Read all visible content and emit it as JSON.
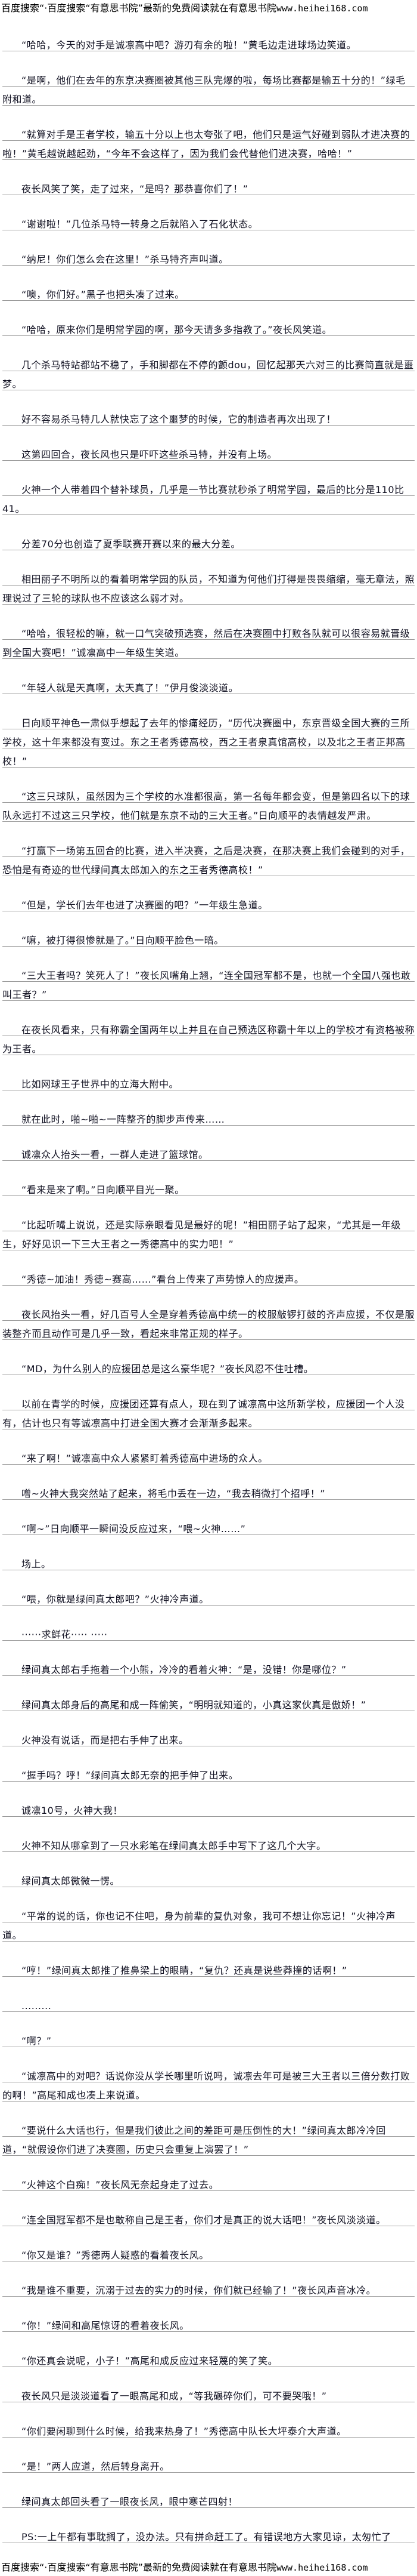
{
  "header": {
    "prefix": "百度搜索“·百度搜索“有意思书院”最新的免费阅读就在有意思书院",
    "url": "www.heihei168.com"
  },
  "paragraphs": [
    "“哈哈，今天的对手是诚凛高中吧？游刃有余的啦！”黄毛边走进球场边笑道。",
    "“是啊，他们在去年的东京决赛圈被其他三队完爆的啦，每场比赛都是输五十分的！”绿毛附和道。",
    "“就算对手是王者学校，输五十分以上也太夸张了吧，他们只是运气好碰到弱队才进决赛的啦！”黄毛越说越起劲，“今年不会这样了，因为我们会代替他们进决赛，哈哈！”",
    "夜长风笑了笑，走了过来，“是吗？那恭喜你们了！”",
    "“谢谢啦！”几位杀马特一转身之后就陷入了石化状态。",
    "“纳尼！你们怎么会在这里！”杀马特齐声叫道。",
    "“噢，你们好。”黑子也把头凑了过来。",
    "“哈哈，原来你们是明常学园的啊，那今天请多多指教了。”夜长风笑道。",
    "几个杀马特站都站不稳了，手和脚都在不停的颤dou，回忆起那天六对三的比赛简直就是噩梦。",
    "好不容易杀马特几人就快忘了这个噩梦的时候，它的制造者再次出现了！",
    "这第四回合，夜长风也只是吓吓这些杀马特，并没有上场。",
    "火神一个人带着四个替补球员，几乎是一节比赛就秒杀了明常学园，最后的比分是110比41。",
    "分差70分也创造了夏季联赛开赛以来的最大分差。",
    "相田丽子不明所以的看着明常学园的队员，不知道为何他们打得是畏畏缩缩，毫无章法，照理说过了三轮的球队也不应该这么弱才对。",
    "“哈哈，很轻松的嘛，就一口气突破预选赛，然后在决赛圈中打败各队就可以很容易就晋级到全国大赛吧！”诚凛高中一年级生笑道。",
    "“年轻人就是天真啊，太天真了！”伊月俊淡淡道。",
    "日向顺平神色一肃似乎想起了去年的惨痛经历，“历代决赛圈中，东京晋级全国大赛的三所学校，这十年来都没有变过。东之王者秀德高校，西之王者泉真馆高校，以及北之王者正邦高校！”",
    "“这三只球队，虽然因为三个学校的水准都很高，第一名每年都会变，但是第四名以下的球队永远打不过这三只学校，他们就是东京不动的三大王者。”日向顺平的表情越发严肃。",
    "“打赢下一场第五回合的比赛，进入半决赛，之后是决赛，在那决赛上我们会碰到的对手，恐怕是有奇迹的世代绿间真太郎加入的东之王者秀德高校！”",
    "“但是，学长们去年也进了决赛圈的吧？”一年级生急道。",
    "“嘛，被打得很惨就是了。”日向顺平脸色一暗。",
    "“三大王者吗？笑死人了！”夜长风嘴角上翘，“连全国冠军都不是，也就一个全国八强也敢叫王者？”",
    "在夜长风看来，只有称霸全国两年以上并且在自己预选区称霸十年以上的学校才有资格被称为王者。",
    "比如网球王子世界中的立海大附中。",
    "就在此时，啪~啪~一阵整齐的脚步声传来……",
    "诚凛众人抬头一看，一群人走进了篮球馆。",
    "“看来是来了啊。”日向顺平目光一聚。",
    "“比起听嘴上说说，还是实际亲眼看见是最好的呢！”相田丽子站了起来，“尤其是一年级生，好好见识一下三大王者之一秀德高中的实力吧！”",
    "“秀德~加油！秀德~赛高……”看台上传来了声势惊人的应援声。",
    "夜长风抬头一看，好几百号人全是穿着秀德高中统一的校服敲锣打鼓的齐声应援，不仅是服装整齐而且动作可是几乎一致，看起来非常正规的样子。",
    "“MD，为什么别人的应援团总是这么豪华呢？”夜长风忍不住吐槽。",
    "以前在青学的时候，应援团还算有点人，现在到了诚凛高中这所新学校，应援团一个人没有，估计也只有等诚凛高中打进全国大赛才会渐渐多起来。",
    "“来了啊！”诚凛高中众人紧紧盯着秀德高中进场的众人。",
    "噌~火神大我突然站了起来，将毛巾丢在一边，“我去稍微打个招呼！”",
    "“啊~”日向顺平一瞬间没反应过来，“喂~火神……”",
    "场上。",
    "“喂，你就是绿间真太郎吧？”火神冷声道。",
    "······求鲜花·····  ·····",
    "绿间真太郎右手拖着一个小熊，冷冷的看着火神：“是，没错！你是哪位？”",
    "绿间真太郎身后的高尾和成一阵偷笑，“明明就知道的，小真这家伙真是傲娇！”",
    "火神没有说话，而是把右手伸了出来。",
    "“握手吗？呼！”绿间真太郎无奈的把手伸了出来。",
    "诚凛10号，火神大我！",
    "火神不知从哪拿到了一只水彩笔在绿间真太郎手中写下了这几个大字。",
    "绿间真太郎微微一愣。",
    "“平常的说的话，你也记不住吧，身为前辈的复仇对象，我可不想让你忘记！”火神冷声道。",
    "“哼！”绿间真太郎推了推鼻梁上的眼睛，“复仇？还真是说些莽撞的话啊！”",
    ".........",
    "“啊？”",
    "“诚凛高中的对吧？话说你没从学长哪里听说吗，诚凛去年可是被三大王者以三倍分数打败的啊！”高尾和成也凑上来说道。",
    "“要说什么大话也行，但是我们彼此之间的差距可是压倒性的大！”绿间真太郎冷冷回道，“就假设你们进了决赛圈，历史只会重复上演罢了！”",
    "“火神这个白痴！”夜长风无奈起身走了过去。",
    "“连全国冠军都不是也敢称自己是王者，你们才是真正的说大话吧！”夜长风淡淡道。",
    "“你又是谁？”秀德两人疑惑的看着夜长风。",
    "“我是谁不重要，沉溺于过去的实力的时候，你们就已经输了！”夜长风声音冰冷。",
    "“你！”绿间和高尾惊讶的看着夜长风。",
    "“你还真会说呢，小子！”高尾和成反应过来轻蔑的笑了笑。",
    "夜长风只是淡淡道看了一眼高尾和成，“等我碾碎你们，可不要哭哦！”",
    "“你们要闲聊到什么时候，给我来热身了！”秀德高中队长大坪泰介大声道。",
    "“是！”两人应道，然后转身离开。",
    "绿间真太郎回头看了一眼夜长风，眼中寒芒四射！",
    "PS:一上午都有事耽搁了，没办法。只有拼命赶工了。有错误地方大家见谅，太匆忙了"
  ],
  "footer": {
    "prefix": "百度搜索“·百度搜索“有意思书院”最新的免费阅读就在有意思书院",
    "url": "www.heihei168.com"
  }
}
